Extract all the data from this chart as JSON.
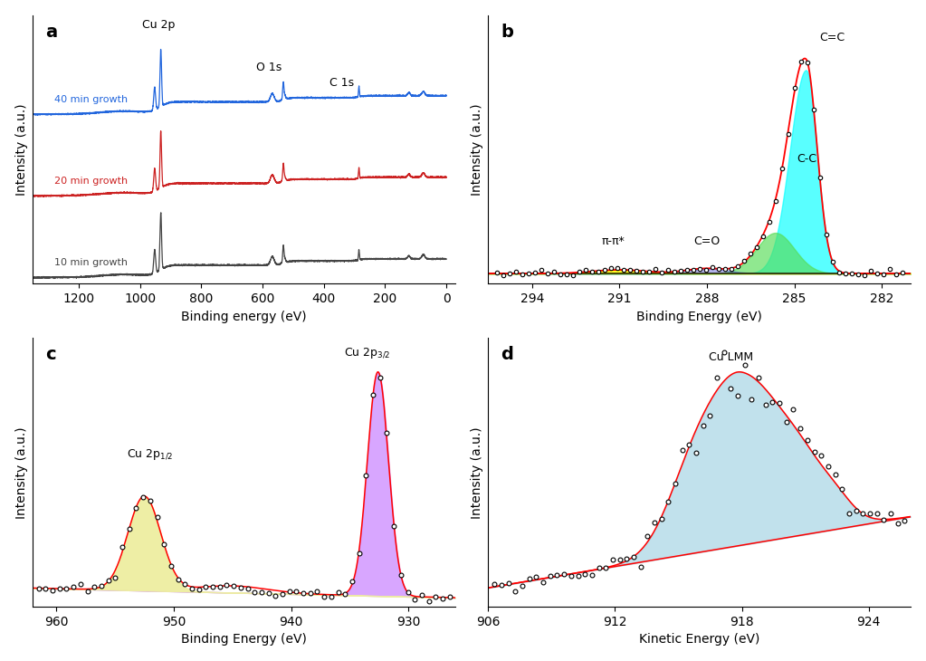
{
  "fig_width": 10.23,
  "fig_height": 7.3,
  "panel_a": {
    "xlabel": "Binding energy (eV)",
    "ylabel": "Intensity (a.u.)",
    "xlim": [
      1350,
      -30
    ],
    "xticks": [
      1200,
      1000,
      800,
      600,
      400,
      200,
      0
    ],
    "label": "a"
  },
  "panel_b": {
    "xlabel": "Binding Energy (eV)",
    "ylabel": "Intensity (a.u.)",
    "xlim": [
      295.5,
      281.0
    ],
    "xticks": [
      294,
      291,
      288,
      285,
      282
    ],
    "label": "b"
  },
  "panel_c": {
    "xlabel": "Binding Energy (eV)",
    "ylabel": "Intensity (a.u.)",
    "xlim": [
      962,
      926
    ],
    "xticks": [
      960,
      950,
      940,
      930
    ],
    "label": "c"
  },
  "panel_d": {
    "xlabel": "Kinetic Energy (eV)",
    "ylabel": "Intensity (a.u.)",
    "xlim": [
      906,
      926
    ],
    "xticks": [
      906,
      912,
      918,
      924
    ],
    "label": "d"
  }
}
